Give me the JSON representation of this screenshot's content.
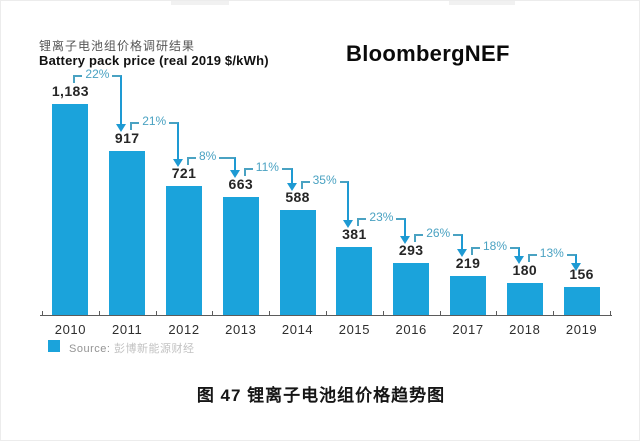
{
  "header": {
    "title_cn": "锂离子电池组价格调研结果",
    "title_en": "Battery pack price (real 2019 $/kWh)",
    "brand": "BloombergNEF"
  },
  "source": {
    "label": "Source:",
    "name_cn": "彭博新能源财经"
  },
  "caption": "图 47  锂离子电池组价格趋势图",
  "colors": {
    "bar": "#1ba3db",
    "annotation_text": "#4aa2c2",
    "annotation_arrow": "#1e9ad3",
    "axis": "#5b5b5b"
  },
  "chart_data": {
    "type": "bar",
    "title": "Battery pack price (real 2019 $/kWh)",
    "xlabel": "",
    "ylabel": "real 2019 $/kWh",
    "categories": [
      "2010",
      "2011",
      "2012",
      "2013",
      "2014",
      "2015",
      "2016",
      "2017",
      "2018",
      "2019"
    ],
    "values": [
      1183,
      917,
      721,
      663,
      588,
      381,
      293,
      219,
      180,
      156
    ],
    "value_labels": [
      "1,183",
      "917",
      "721",
      "663",
      "588",
      "381",
      "293",
      "219",
      "180",
      "156"
    ],
    "drops_pct": [
      22,
      21,
      8,
      11,
      35,
      23,
      26,
      18,
      13
    ],
    "drop_labels": [
      "22%",
      "21%",
      "8%",
      "11%",
      "35%",
      "23%",
      "26%",
      "18%",
      "13%"
    ],
    "ylim": [
      0,
      1250
    ],
    "grid": false,
    "legend_position": "bottom-left",
    "legend": [
      "Source: 彭博新能源财经"
    ],
    "bar_color": "#1ba3db"
  }
}
